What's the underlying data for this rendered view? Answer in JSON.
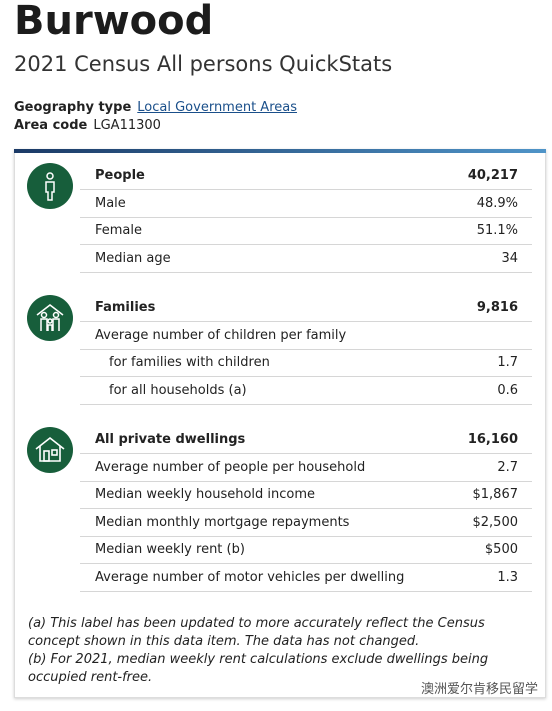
{
  "header": {
    "title": "Burwood",
    "subtitle": "2021 Census All persons QuickStats",
    "geography_label": "Geography type",
    "geography_value": "Local Government Areas",
    "area_label": "Area code",
    "area_value": "LGA11300"
  },
  "sections": [
    {
      "rows": [
        [
          "People",
          "40,217"
        ],
        [
          "Male",
          "48.9%"
        ],
        [
          "Female",
          "51.1%"
        ],
        [
          "Median age",
          "34"
        ]
      ]
    },
    {
      "rows": [
        [
          "Families",
          "9,816"
        ],
        [
          "Average number of children per family",
          null
        ],
        [
          "for families with children",
          "1.7"
        ],
        [
          "for all households (a)",
          "0.6"
        ]
      ]
    },
    {
      "rows": [
        [
          "All private dwellings",
          "16,160"
        ],
        [
          "Average number of people per household",
          "2.7"
        ],
        [
          "Median weekly household income",
          "$1,867"
        ],
        [
          "Median monthly mortgage repayments",
          "$2,500"
        ],
        [
          "Median weekly rent (b)",
          "$500"
        ],
        [
          "Average number of motor vehicles per dwelling",
          "1.3"
        ]
      ]
    }
  ],
  "footnotes": [
    "(a) This label has been updated to more accurately reflect the Census concept shown in this data item. The data has not changed.",
    "(b) For 2021, median weekly rent calculations exclude dwellings being occupied rent-free."
  ],
  "watermark": "澳洲爱尔肯移民留学"
}
